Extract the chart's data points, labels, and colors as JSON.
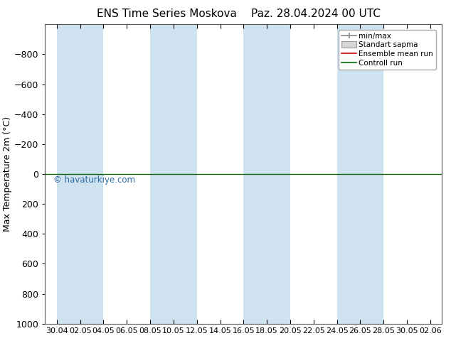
{
  "title_left": "ENS Time Series Moskova",
  "title_right": "Paz. 28.04.2024 00 UTC",
  "ylabel": "Max Temperature 2m (°C)",
  "ylim": [
    1000,
    -1000
  ],
  "y_ticks": [
    -800,
    -600,
    -400,
    -200,
    0,
    200,
    400,
    600,
    800,
    1000
  ],
  "x_labels": [
    "30.04",
    "02.05",
    "04.05",
    "06.05",
    "08.05",
    "10.05",
    "12.05",
    "14.05",
    "16.05",
    "18.05",
    "20.05",
    "22.05",
    "24.05",
    "26.05",
    "28.05",
    "30.05",
    "02.06"
  ],
  "watermark": "© havaturkiye.com",
  "legend_labels": [
    "min/max",
    "Standart sapma",
    "Ensemble mean run",
    "Controll run"
  ],
  "band_color": "#cfe2f0",
  "band_alpha": 1.0,
  "background_color": "#ffffff",
  "title_fontsize": 11,
  "tick_fontsize": 9,
  "ylabel_fontsize": 9,
  "watermark_color": "#1a5c99",
  "band_indices": [
    0,
    2,
    4,
    6,
    8,
    10,
    14
  ]
}
